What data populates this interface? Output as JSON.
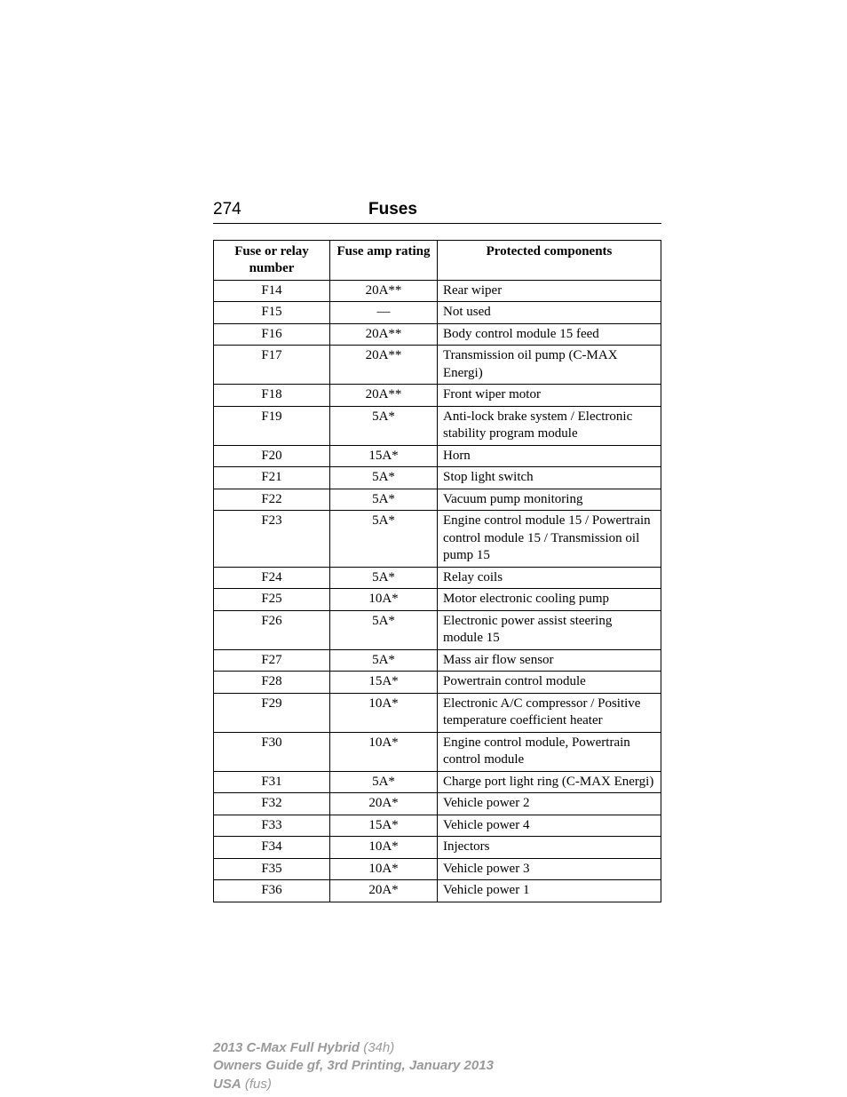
{
  "header": {
    "page_number": "274",
    "title": "Fuses"
  },
  "table": {
    "type": "table",
    "columns": [
      "Fuse or relay number",
      "Fuse amp rating",
      "Protected components"
    ],
    "column_widths": [
      "26%",
      "24%",
      "50%"
    ],
    "column_alignment": [
      "center",
      "center",
      "left"
    ],
    "header_fontweight": "bold",
    "border_color": "#000000",
    "background_color": "#ffffff",
    "text_color": "#000000",
    "fontsize": 15,
    "rows": [
      [
        "F14",
        "20A**",
        "Rear wiper"
      ],
      [
        "F15",
        "—",
        "Not used"
      ],
      [
        "F16",
        "20A**",
        "Body control module 15 feed"
      ],
      [
        "F17",
        "20A**",
        "Transmission oil pump (C-MAX Energi)"
      ],
      [
        "F18",
        "20A**",
        "Front wiper motor"
      ],
      [
        "F19",
        "5A*",
        "Anti-lock brake system / Electronic stability program module"
      ],
      [
        "F20",
        "15A*",
        "Horn"
      ],
      [
        "F21",
        "5A*",
        "Stop light switch"
      ],
      [
        "F22",
        "5A*",
        "Vacuum pump monitoring"
      ],
      [
        "F23",
        "5A*",
        "Engine control module 15 / Powertrain control module 15 / Transmission oil pump 15"
      ],
      [
        "F24",
        "5A*",
        "Relay coils"
      ],
      [
        "F25",
        "10A*",
        "Motor electronic cooling pump"
      ],
      [
        "F26",
        "5A*",
        "Electronic power assist steering module 15"
      ],
      [
        "F27",
        "5A*",
        "Mass air flow sensor"
      ],
      [
        "F28",
        "15A*",
        "Powertrain control module"
      ],
      [
        "F29",
        "10A*",
        "Electronic A/C compressor / Positive temperature coefficient heater"
      ],
      [
        "F30",
        "10A*",
        "Engine control module, Powertrain control module"
      ],
      [
        "F31",
        "5A*",
        "Charge port light ring (C-MAX Energi)"
      ],
      [
        "F32",
        "20A*",
        "Vehicle power 2"
      ],
      [
        "F33",
        "15A*",
        "Vehicle power 4"
      ],
      [
        "F34",
        "10A*",
        "Injectors"
      ],
      [
        "F35",
        "10A*",
        "Vehicle power 3"
      ],
      [
        "F36",
        "20A*",
        "Vehicle power 1"
      ]
    ]
  },
  "footer": {
    "line1_bold": "2013 C-Max Full Hybrid",
    "line1_rest": " (34h)",
    "line2_bold": "Owners Guide gf, 3rd Printing, January 2013",
    "line3_bold": "USA",
    "line3_rest": " (fus)",
    "text_color": "#9a9a9a",
    "fontsize": 15
  }
}
